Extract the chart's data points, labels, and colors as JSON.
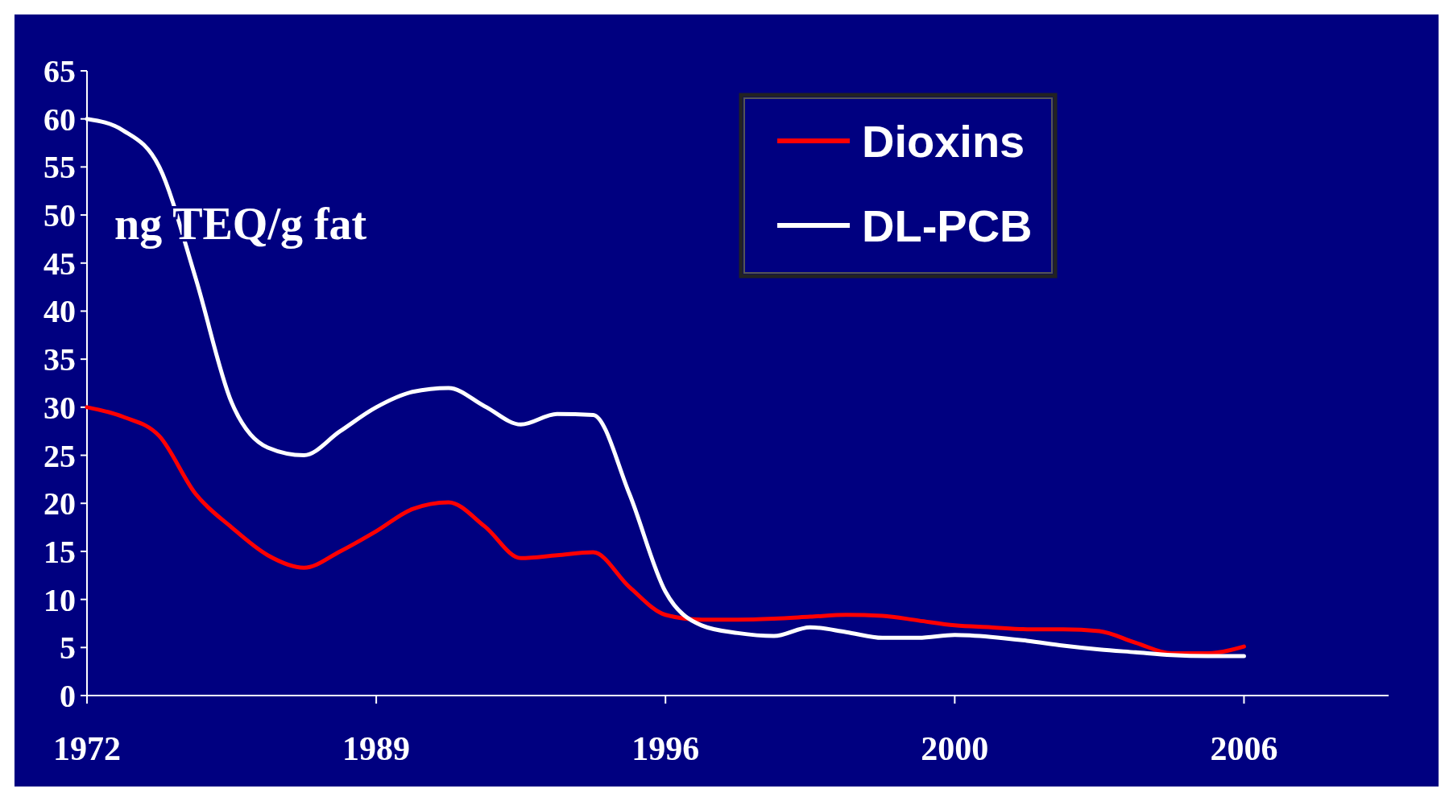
{
  "chart_data": {
    "type": "line",
    "annotations": [
      "ng TEQ/g fat"
    ],
    "categories": [
      "1972",
      null,
      null,
      null,
      null,
      null,
      null,
      null,
      "1989",
      null,
      null,
      null,
      null,
      null,
      null,
      null,
      "1996",
      null,
      null,
      null,
      null,
      null,
      null,
      null,
      "2000",
      null,
      null,
      null,
      null,
      null,
      null,
      null,
      "2006",
      null,
      null,
      null,
      null
    ],
    "ylim": [
      0,
      65
    ],
    "yticks": [
      0,
      5,
      10,
      15,
      20,
      25,
      30,
      35,
      40,
      45,
      50,
      55,
      60,
      65
    ],
    "grid": false,
    "legend": "top right",
    "marker": "none",
    "line_style": "solid",
    "series": [
      {
        "name": "Dioxins",
        "color": "#ff0000",
        "values": [
          30,
          29,
          27,
          21,
          17.5,
          14.6,
          13.3,
          15,
          17.1,
          19.4,
          20.1,
          17.6,
          14.3,
          14.6,
          14.9,
          11.3,
          8.4,
          7.9,
          7.9,
          8,
          8.2,
          8.4,
          8.3,
          7.8,
          7.3,
          7.1,
          6.9,
          6.9,
          6.7,
          5.5,
          4.4,
          4.4,
          5.1,
          null,
          null,
          null,
          null
        ]
      },
      {
        "name": "DL-PCB",
        "color": "#ffffff",
        "values": [
          60,
          58.8,
          55,
          43.5,
          30.5,
          25.8,
          25,
          27.5,
          30,
          31.6,
          32,
          30.1,
          28.2,
          29.3,
          29.2,
          21,
          10.8,
          7.3,
          6.5,
          6.2,
          7.1,
          6.6,
          6,
          6,
          6.3,
          6.1,
          5.7,
          5.2,
          4.8,
          4.5,
          4.2,
          4.1,
          4.1,
          null,
          null,
          null,
          null
        ]
      }
    ]
  }
}
